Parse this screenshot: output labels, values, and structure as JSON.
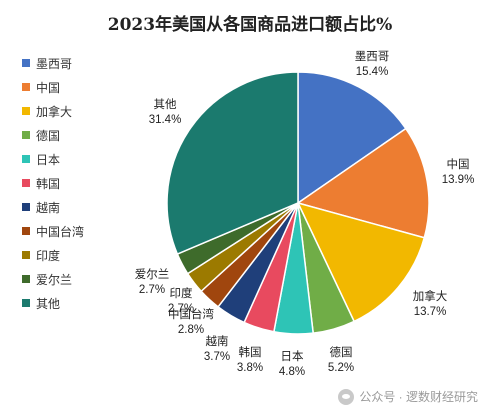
{
  "chart_data": {
    "type": "pie",
    "title": "2023年美国从各国商品进口额占比%",
    "legend_position": "left",
    "slices": [
      {
        "label": "墨西哥",
        "value": 15.4,
        "pct_text": "15.4%",
        "color": "#4472C4"
      },
      {
        "label": "中国",
        "value": 13.9,
        "pct_text": "13.9%",
        "color": "#ED7D31"
      },
      {
        "label": "加拿大",
        "value": 13.7,
        "pct_text": "13.7%",
        "color": "#F2B800"
      },
      {
        "label": "德国",
        "value": 5.2,
        "pct_text": "5.2%",
        "color": "#70AD47"
      },
      {
        "label": "日本",
        "value": 4.8,
        "pct_text": "4.8%",
        "color": "#2EC4B6"
      },
      {
        "label": "韩国",
        "value": 3.8,
        "pct_text": "3.8%",
        "color": "#E84A5F"
      },
      {
        "label": "越南",
        "value": 3.7,
        "pct_text": "3.7%",
        "color": "#1F3F7A"
      },
      {
        "label": "中国台湾",
        "value": 2.8,
        "pct_text": "2.8%",
        "color": "#A0460E"
      },
      {
        "label": "印度",
        "value": 2.7,
        "pct_text": "2.7%",
        "color": "#9C7A00"
      },
      {
        "label": "爱尔兰",
        "value": 2.7,
        "pct_text": "2.7%",
        "color": "#3E6B2B"
      },
      {
        "label": "其他",
        "value": 31.4,
        "pct_text": "31.4%",
        "color": "#1B7A6E"
      }
    ]
  },
  "watermark": {
    "text": "公众号 · 逻数财经研究"
  }
}
